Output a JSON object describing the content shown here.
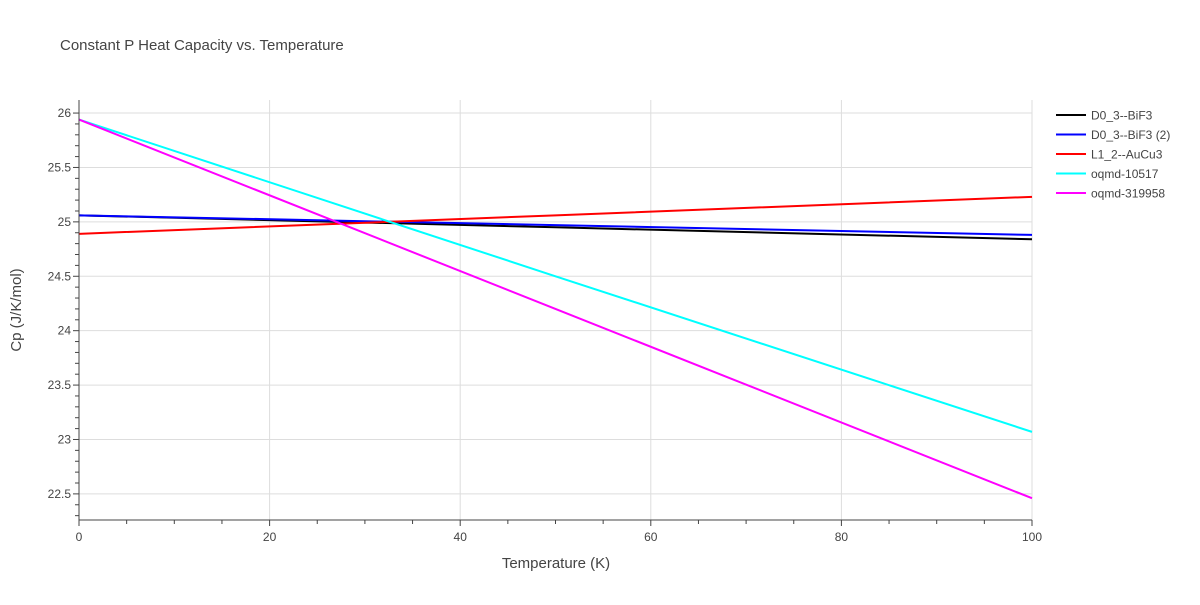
{
  "chart_data": {
    "type": "line",
    "title": "Constant P Heat Capacity vs. Temperature",
    "xlabel": "Temperature (K)",
    "ylabel": "Cp (J/K/mol)",
    "xlim": [
      0,
      100
    ],
    "ylim": [
      22.26,
      26.12
    ],
    "xticks": [
      0,
      20,
      40,
      60,
      80,
      100
    ],
    "yticks": [
      22.5,
      23,
      23.5,
      24,
      24.5,
      25,
      25.5,
      26
    ],
    "grid": true,
    "legend_position": "right",
    "series": [
      {
        "name": "D0_3--BiF3",
        "color": "#000000",
        "x": [
          0,
          50,
          100
        ],
        "y": [
          25.06,
          24.95,
          24.84
        ]
      },
      {
        "name": "D0_3--BiF3 (2)",
        "color": "#0000ff",
        "x": [
          0,
          50,
          100
        ],
        "y": [
          25.06,
          24.97,
          24.88
        ]
      },
      {
        "name": "L1_2--AuCu3",
        "color": "#ff0000",
        "x": [
          0,
          50,
          100
        ],
        "y": [
          24.89,
          25.06,
          25.23
        ]
      },
      {
        "name": "oqmd-10517",
        "color": "#00ffff",
        "x": [
          0,
          50,
          100
        ],
        "y": [
          25.94,
          24.5,
          23.07
        ]
      },
      {
        "name": "oqmd-319958",
        "color": "#ff00ff",
        "x": [
          0,
          50,
          100
        ],
        "y": [
          25.94,
          24.2,
          22.46
        ]
      }
    ]
  }
}
